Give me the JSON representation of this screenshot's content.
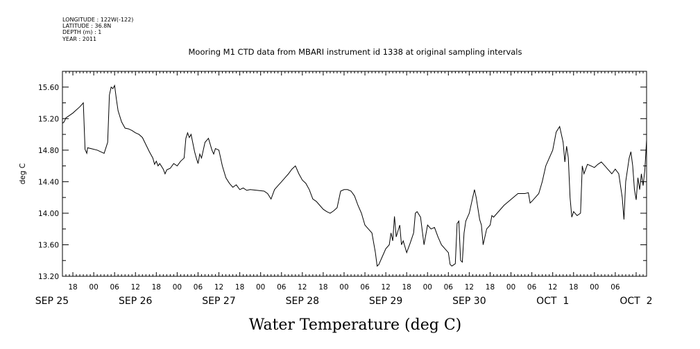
{
  "meta": {
    "lines": [
      "LONGITUDE : 122W(-122)",
      "LATITUDE : 36.8N",
      "DEPTH (m) : 1",
      "YEAR : 2011"
    ]
  },
  "chart_data": {
    "type": "line",
    "title": "Mooring M1 CTD data from MBARI instrument id 1338 at original sampling intervals",
    "ylabel": "deg C",
    "xlabel": "Water Temperature (deg C)",
    "ylim": [
      13.2,
      15.8
    ],
    "yticks": [
      "13.20",
      "13.60",
      "14.00",
      "14.40",
      "14.80",
      "15.20",
      "15.60"
    ],
    "xlim": [
      "2011-09-25T15:00",
      "2011-10-02T15:00"
    ],
    "xhour_labels": [
      {
        "t": "2011-09-25T18:00",
        "label": "18"
      },
      {
        "t": "2011-09-26T00:00",
        "label": "00"
      },
      {
        "t": "2011-09-26T06:00",
        "label": "06"
      },
      {
        "t": "2011-09-26T12:00",
        "label": "12"
      },
      {
        "t": "2011-09-26T18:00",
        "label": "18"
      },
      {
        "t": "2011-09-27T00:00",
        "label": "00"
      },
      {
        "t": "2011-09-27T06:00",
        "label": "06"
      },
      {
        "t": "2011-09-27T12:00",
        "label": "12"
      },
      {
        "t": "2011-09-27T18:00",
        "label": "18"
      },
      {
        "t": "2011-09-28T00:00",
        "label": "00"
      },
      {
        "t": "2011-09-28T06:00",
        "label": "06"
      },
      {
        "t": "2011-09-28T12:00",
        "label": "12"
      },
      {
        "t": "2011-09-28T18:00",
        "label": "18"
      },
      {
        "t": "2011-09-29T00:00",
        "label": "00"
      },
      {
        "t": "2011-09-29T06:00",
        "label": "06"
      },
      {
        "t": "2011-09-29T12:00",
        "label": "12"
      },
      {
        "t": "2011-09-29T18:00",
        "label": "18"
      },
      {
        "t": "2011-09-30T00:00",
        "label": "00"
      },
      {
        "t": "2011-09-30T06:00",
        "label": "06"
      },
      {
        "t": "2011-09-30T12:00",
        "label": "12"
      },
      {
        "t": "2011-09-30T18:00",
        "label": "18"
      },
      {
        "t": "2011-10-01T00:00",
        "label": "00"
      },
      {
        "t": "2011-10-01T06:00",
        "label": "06"
      },
      {
        "t": "2011-10-01T12:00",
        "label": "12"
      },
      {
        "t": "2011-10-01T18:00",
        "label": "18"
      },
      {
        "t": "2011-10-02T00:00",
        "label": "00"
      },
      {
        "t": "2011-10-02T06:00",
        "label": "06"
      }
    ],
    "xday_labels": [
      {
        "t": "2011-09-25T12:00",
        "label": "SEP 25"
      },
      {
        "t": "2011-09-26T12:00",
        "label": "SEP 26"
      },
      {
        "t": "2011-09-27T12:00",
        "label": "SEP 27"
      },
      {
        "t": "2011-09-28T12:00",
        "label": "SEP 28"
      },
      {
        "t": "2011-09-29T12:00",
        "label": "SEP 29"
      },
      {
        "t": "2011-09-30T12:00",
        "label": "SEP 30"
      },
      {
        "t": "2011-10-01T12:00",
        "label": "OCT  1"
      },
      {
        "t": "2011-10-02T12:00",
        "label": "OCT  2"
      }
    ],
    "grid": false,
    "series": [
      {
        "color": "#000000",
        "points": [
          [
            "2011-09-25T15:00",
            15.14
          ],
          [
            "2011-09-25T15:30",
            15.16
          ],
          [
            "2011-09-25T16:00",
            15.21
          ],
          [
            "2011-09-25T17:00",
            15.24
          ],
          [
            "2011-09-25T18:00",
            15.27
          ],
          [
            "2011-09-25T19:00",
            15.31
          ],
          [
            "2011-09-25T20:00",
            15.35
          ],
          [
            "2011-09-25T21:00",
            15.4
          ],
          [
            "2011-09-25T21:30",
            14.81
          ],
          [
            "2011-09-25T22:00",
            14.76
          ],
          [
            "2011-09-25T22:15",
            14.83
          ],
          [
            "2011-09-26T01:00",
            14.8
          ],
          [
            "2011-09-26T03:00",
            14.76
          ],
          [
            "2011-09-26T04:00",
            14.9
          ],
          [
            "2011-09-26T04:30",
            15.5
          ],
          [
            "2011-09-26T05:00",
            15.6
          ],
          [
            "2011-09-26T05:30",
            15.58
          ],
          [
            "2011-09-26T06:00",
            15.62
          ],
          [
            "2011-09-26T06:30",
            15.45
          ],
          [
            "2011-09-26T07:00",
            15.3
          ],
          [
            "2011-09-26T08:00",
            15.16
          ],
          [
            "2011-09-26T09:00",
            15.08
          ],
          [
            "2011-09-26T10:00",
            15.07
          ],
          [
            "2011-09-26T11:00",
            15.05
          ],
          [
            "2011-09-26T12:00",
            15.02
          ],
          [
            "2011-09-26T13:00",
            15.0
          ],
          [
            "2011-09-26T14:00",
            14.96
          ],
          [
            "2011-09-26T15:00",
            14.87
          ],
          [
            "2011-09-26T16:00",
            14.78
          ],
          [
            "2011-09-26T17:00",
            14.7
          ],
          [
            "2011-09-26T17:30",
            14.62
          ],
          [
            "2011-09-26T18:00",
            14.66
          ],
          [
            "2011-09-26T18:30",
            14.6
          ],
          [
            "2011-09-26T19:00",
            14.63
          ],
          [
            "2011-09-26T20:00",
            14.56
          ],
          [
            "2011-09-26T20:30",
            14.5
          ],
          [
            "2011-09-26T21:00",
            14.55
          ],
          [
            "2011-09-26T22:00",
            14.57
          ],
          [
            "2011-09-26T23:00",
            14.63
          ],
          [
            "2011-09-27T00:00",
            14.6
          ],
          [
            "2011-09-27T01:00",
            14.66
          ],
          [
            "2011-09-27T02:00",
            14.7
          ],
          [
            "2011-09-27T02:30",
            14.95
          ],
          [
            "2011-09-27T03:00",
            15.02
          ],
          [
            "2011-09-27T03:30",
            14.96
          ],
          [
            "2011-09-27T04:00",
            15.0
          ],
          [
            "2011-09-27T05:00",
            14.78
          ],
          [
            "2011-09-27T05:30",
            14.7
          ],
          [
            "2011-09-27T06:00",
            14.63
          ],
          [
            "2011-09-27T06:30",
            14.75
          ],
          [
            "2011-09-27T07:00",
            14.7
          ],
          [
            "2011-09-27T08:00",
            14.9
          ],
          [
            "2011-09-27T09:00",
            14.95
          ],
          [
            "2011-09-27T10:00",
            14.8
          ],
          [
            "2011-09-27T10:30",
            14.75
          ],
          [
            "2011-09-27T11:00",
            14.82
          ],
          [
            "2011-09-27T12:00",
            14.8
          ],
          [
            "2011-09-27T13:00",
            14.6
          ],
          [
            "2011-09-27T14:00",
            14.45
          ],
          [
            "2011-09-27T15:00",
            14.38
          ],
          [
            "2011-09-27T16:00",
            14.33
          ],
          [
            "2011-09-27T17:00",
            14.36
          ],
          [
            "2011-09-27T18:00",
            14.3
          ],
          [
            "2011-09-27T19:00",
            14.32
          ],
          [
            "2011-09-27T20:00",
            14.29
          ],
          [
            "2011-09-27T21:00",
            14.3
          ],
          [
            "2011-09-27T23:00",
            14.29
          ],
          [
            "2011-09-28T01:00",
            14.28
          ],
          [
            "2011-09-28T02:00",
            14.25
          ],
          [
            "2011-09-28T03:00",
            14.18
          ],
          [
            "2011-09-28T04:00",
            14.3
          ],
          [
            "2011-09-28T05:00",
            14.35
          ],
          [
            "2011-09-28T06:00",
            14.4
          ],
          [
            "2011-09-28T07:00",
            14.45
          ],
          [
            "2011-09-28T08:00",
            14.5
          ],
          [
            "2011-09-28T09:00",
            14.56
          ],
          [
            "2011-09-28T10:00",
            14.6
          ],
          [
            "2011-09-28T11:00",
            14.5
          ],
          [
            "2011-09-28T12:00",
            14.42
          ],
          [
            "2011-09-28T13:00",
            14.38
          ],
          [
            "2011-09-28T14:00",
            14.3
          ],
          [
            "2011-09-28T15:00",
            14.18
          ],
          [
            "2011-09-28T16:00",
            14.15
          ],
          [
            "2011-09-28T17:00",
            14.1
          ],
          [
            "2011-09-28T18:00",
            14.05
          ],
          [
            "2011-09-28T19:00",
            14.02
          ],
          [
            "2011-09-28T20:00",
            14.0
          ],
          [
            "2011-09-28T21:00",
            14.03
          ],
          [
            "2011-09-28T22:00",
            14.07
          ],
          [
            "2011-09-28T23:00",
            14.28
          ],
          [
            "2011-09-29T00:00",
            14.3
          ],
          [
            "2011-09-29T01:00",
            14.3
          ],
          [
            "2011-09-29T02:00",
            14.28
          ],
          [
            "2011-09-29T03:00",
            14.22
          ],
          [
            "2011-09-29T04:00",
            14.1
          ],
          [
            "2011-09-29T05:00",
            14.0
          ],
          [
            "2011-09-29T06:00",
            13.85
          ],
          [
            "2011-09-29T07:00",
            13.8
          ],
          [
            "2011-09-29T08:00",
            13.75
          ],
          [
            "2011-09-29T09:00",
            13.5
          ],
          [
            "2011-09-29T09:30",
            13.33
          ],
          [
            "2011-09-29T10:00",
            13.35
          ],
          [
            "2011-09-29T11:00",
            13.45
          ],
          [
            "2011-09-29T12:00",
            13.55
          ],
          [
            "2011-09-29T13:00",
            13.6
          ],
          [
            "2011-09-29T13:30",
            13.75
          ],
          [
            "2011-09-29T14:00",
            13.65
          ],
          [
            "2011-09-29T14:30",
            13.96
          ],
          [
            "2011-09-29T15:00",
            13.7
          ],
          [
            "2011-09-29T16:00",
            13.85
          ],
          [
            "2011-09-29T16:30",
            13.6
          ],
          [
            "2011-09-29T17:00",
            13.65
          ],
          [
            "2011-09-29T18:00",
            13.5
          ],
          [
            "2011-09-29T19:00",
            13.62
          ],
          [
            "2011-09-29T20:00",
            13.75
          ],
          [
            "2011-09-29T20:30",
            14.0
          ],
          [
            "2011-09-29T21:00",
            14.02
          ],
          [
            "2011-09-29T22:00",
            13.95
          ],
          [
            "2011-09-29T23:00",
            13.6
          ],
          [
            "2011-09-30T00:00",
            13.85
          ],
          [
            "2011-09-30T01:00",
            13.8
          ],
          [
            "2011-09-30T02:00",
            13.82
          ],
          [
            "2011-09-30T03:00",
            13.7
          ],
          [
            "2011-09-30T04:00",
            13.6
          ],
          [
            "2011-09-30T05:00",
            13.55
          ],
          [
            "2011-09-30T06:00",
            13.5
          ],
          [
            "2011-09-30T06:30",
            13.35
          ],
          [
            "2011-09-30T07:00",
            13.33
          ],
          [
            "2011-09-30T08:00",
            13.36
          ],
          [
            "2011-09-30T08:30",
            13.87
          ],
          [
            "2011-09-30T09:00",
            13.9
          ],
          [
            "2011-09-30T09:30",
            13.4
          ],
          [
            "2011-09-30T10:00",
            13.38
          ],
          [
            "2011-09-30T10:30",
            13.75
          ],
          [
            "2011-09-30T11:00",
            13.9
          ],
          [
            "2011-09-30T12:00",
            14.0
          ],
          [
            "2011-09-30T13:00",
            14.2
          ],
          [
            "2011-09-30T13:30",
            14.3
          ],
          [
            "2011-09-30T14:00",
            14.2
          ],
          [
            "2011-09-30T15:00",
            13.92
          ],
          [
            "2011-09-30T15:30",
            13.85
          ],
          [
            "2011-09-30T16:00",
            13.6
          ],
          [
            "2011-09-30T17:00",
            13.8
          ],
          [
            "2011-09-30T18:00",
            13.85
          ],
          [
            "2011-09-30T18:30",
            13.97
          ],
          [
            "2011-09-30T19:00",
            13.95
          ],
          [
            "2011-09-30T22:00",
            14.1
          ],
          [
            "2011-10-01T02:00",
            14.25
          ],
          [
            "2011-10-01T04:00",
            14.25
          ],
          [
            "2011-10-01T05:00",
            14.26
          ],
          [
            "2011-10-01T05:30",
            14.13
          ],
          [
            "2011-10-01T06:00",
            14.15
          ],
          [
            "2011-10-01T07:00",
            14.2
          ],
          [
            "2011-10-01T08:00",
            14.25
          ],
          [
            "2011-10-01T09:00",
            14.4
          ],
          [
            "2011-10-01T10:00",
            14.6
          ],
          [
            "2011-10-01T11:00",
            14.7
          ],
          [
            "2011-10-01T12:00",
            14.8
          ],
          [
            "2011-10-01T13:00",
            15.03
          ],
          [
            "2011-10-01T14:00",
            15.1
          ],
          [
            "2011-10-01T15:00",
            14.9
          ],
          [
            "2011-10-01T15:30",
            14.65
          ],
          [
            "2011-10-01T16:00",
            14.85
          ],
          [
            "2011-10-01T16:30",
            14.7
          ],
          [
            "2011-10-01T17:00",
            14.2
          ],
          [
            "2011-10-01T17:30",
            13.95
          ],
          [
            "2011-10-01T18:00",
            14.02
          ],
          [
            "2011-10-01T19:00",
            13.97
          ],
          [
            "2011-10-01T20:00",
            14.0
          ],
          [
            "2011-10-01T20:30",
            14.6
          ],
          [
            "2011-10-01T21:00",
            14.5
          ],
          [
            "2011-10-01T22:00",
            14.62
          ],
          [
            "2011-10-01T23:00",
            14.6
          ],
          [
            "2011-10-02T00:00",
            14.58
          ],
          [
            "2011-10-02T01:00",
            14.62
          ],
          [
            "2011-10-02T02:00",
            14.65
          ],
          [
            "2011-10-02T03:00",
            14.6
          ],
          [
            "2011-10-02T04:00",
            14.55
          ],
          [
            "2011-10-02T05:00",
            14.5
          ],
          [
            "2011-10-02T06:00",
            14.56
          ],
          [
            "2011-10-02T07:00",
            14.5
          ],
          [
            "2011-10-02T08:00",
            14.2
          ],
          [
            "2011-10-02T08:30",
            13.92
          ],
          [
            "2011-10-02T09:00",
            14.4
          ],
          [
            "2011-10-02T10:00",
            14.7
          ],
          [
            "2011-10-02T10:30",
            14.78
          ],
          [
            "2011-10-02T11:00",
            14.6
          ],
          [
            "2011-10-02T11:30",
            14.3
          ],
          [
            "2011-10-02T12:00",
            14.17
          ],
          [
            "2011-10-02T12:30",
            14.45
          ],
          [
            "2011-10-02T13:00",
            14.3
          ],
          [
            "2011-10-02T13:30",
            14.5
          ],
          [
            "2011-10-02T14:00",
            14.35
          ],
          [
            "2011-10-02T14:30",
            14.55
          ],
          [
            "2011-10-02T15:00",
            14.93
          ]
        ]
      }
    ]
  }
}
